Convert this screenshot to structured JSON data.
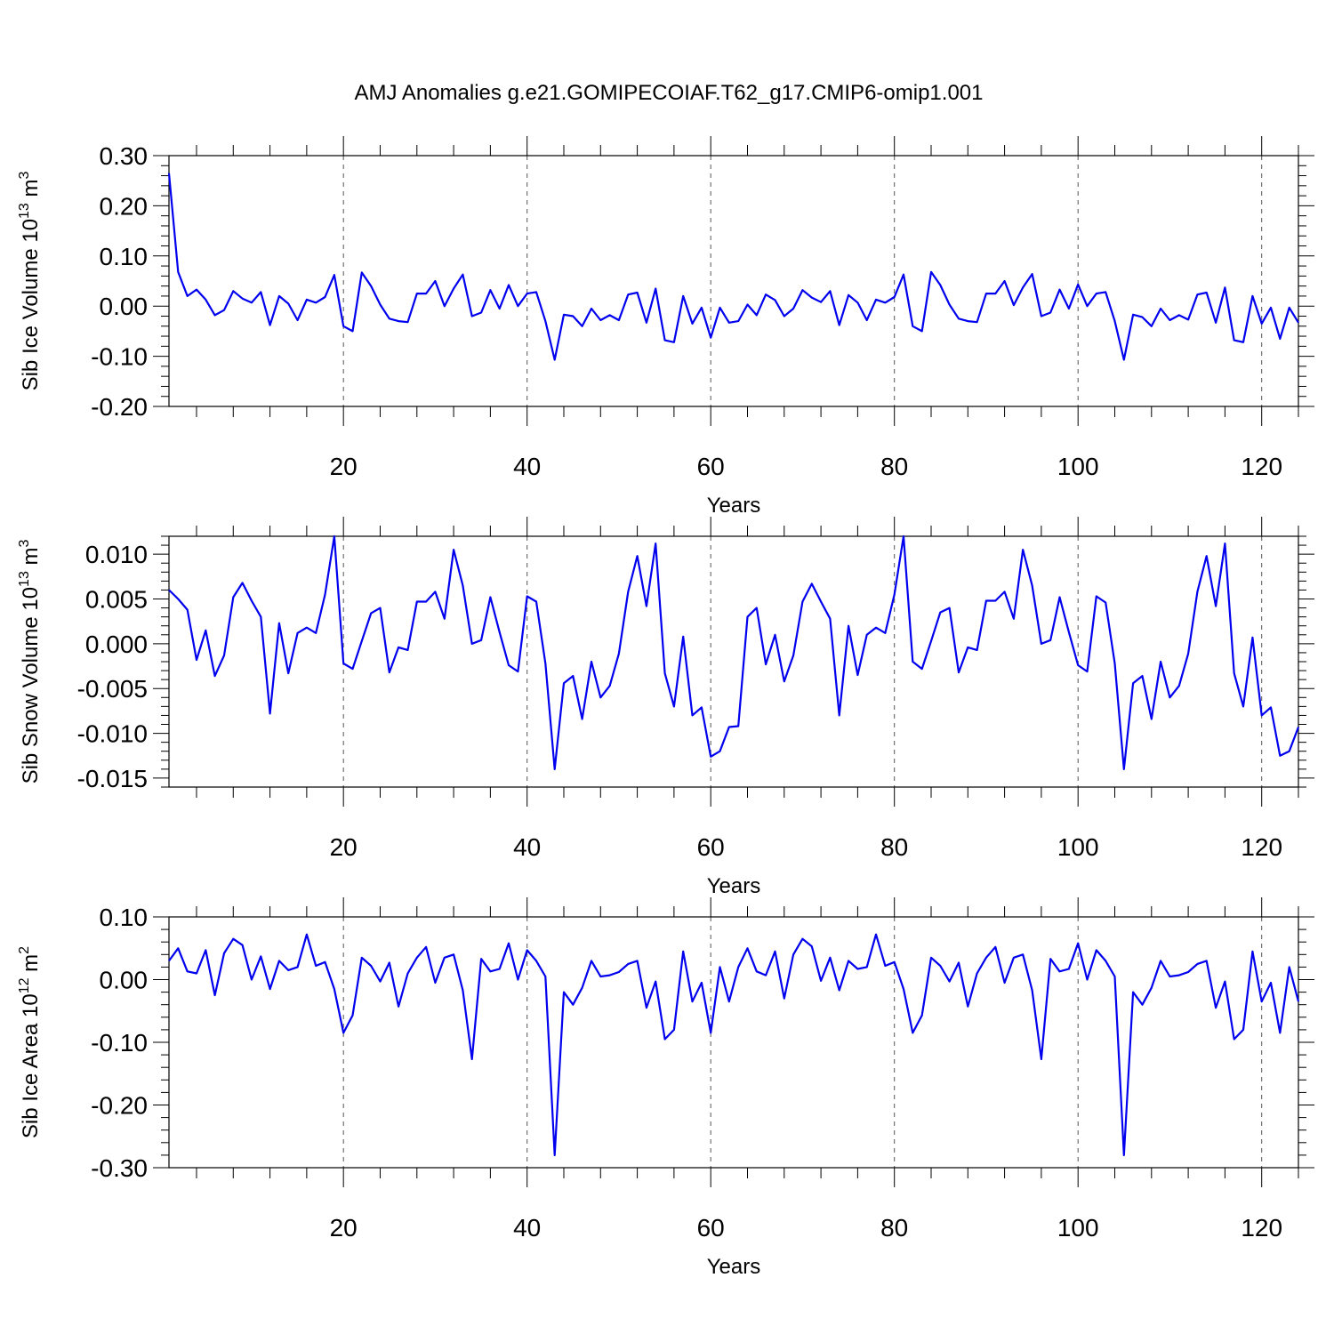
{
  "title": "AMJ Anomalies g.e21.GOMIPECOIAF.T62_g17.CMIP6-omip1.001",
  "chart_data": [
    {
      "type": "line",
      "ylabel_main": "Sib Ice Volume 10",
      "ylabel_exp": "13",
      "ylabel_unit": " m",
      "ylabel_unit_exp": "3",
      "xlabel": "Years",
      "xlim": [
        1,
        124
      ],
      "ylim": [
        -0.2,
        0.3
      ],
      "yticks": [
        -0.2,
        -0.1,
        0.0,
        0.1,
        0.2,
        0.3
      ],
      "yticklabels": [
        "-0.20",
        "-0.10",
        "0.00",
        "0.10",
        "0.20",
        "0.30"
      ],
      "xticks": [
        20,
        40,
        60,
        80,
        100,
        120
      ],
      "xticklabels": [
        "20",
        "40",
        "60",
        "80",
        "100",
        "120"
      ],
      "grid_x": true,
      "color": "#0000ee",
      "series": [
        {
          "values": [
            0.265,
            0.068,
            0.02,
            0.033,
            0.013,
            -0.018,
            -0.008,
            0.03,
            0.015,
            0.007,
            0.028,
            -0.038,
            0.02,
            0.005,
            -0.028,
            0.013,
            0.007,
            0.018,
            0.062,
            -0.04,
            -0.05,
            0.067,
            0.04,
            0.003,
            -0.025,
            -0.03,
            -0.032,
            0.025,
            0.025,
            0.05,
            0.0,
            0.035,
            0.063,
            -0.02,
            -0.013,
            0.032,
            -0.005,
            0.042,
            0.0,
            0.025,
            0.028,
            -0.03,
            -0.107,
            -0.017,
            -0.02,
            -0.04,
            -0.005,
            -0.028,
            -0.018,
            -0.028,
            0.023,
            0.027,
            -0.033,
            0.035,
            -0.068,
            -0.072,
            0.02,
            -0.035,
            -0.003,
            -0.063,
            -0.003,
            -0.033,
            -0.03,
            0.003,
            -0.018,
            0.023,
            0.012,
            -0.02,
            -0.005,
            0.032,
            0.017,
            0.008,
            0.03,
            -0.038,
            0.022,
            0.007,
            -0.028,
            0.013,
            0.007,
            0.018,
            0.063,
            -0.04,
            -0.05,
            0.068,
            0.042,
            0.003,
            -0.025,
            -0.03,
            -0.032,
            0.025,
            0.025,
            0.05,
            0.002,
            0.037,
            0.064,
            -0.02,
            -0.013,
            0.033,
            -0.005,
            0.043,
            0.0,
            0.025,
            0.028,
            -0.03,
            -0.107,
            -0.017,
            -0.022,
            -0.04,
            -0.005,
            -0.028,
            -0.018,
            -0.027,
            0.023,
            0.027,
            -0.033,
            0.037,
            -0.068,
            -0.072,
            0.02,
            -0.035,
            -0.003,
            -0.065,
            -0.003,
            -0.033
          ]
        }
      ]
    },
    {
      "type": "line",
      "ylabel_main": "Sib Snow Volume 10",
      "ylabel_exp": "13",
      "ylabel_unit": " m",
      "ylabel_unit_exp": "3",
      "xlabel": "Years",
      "xlim": [
        1,
        124
      ],
      "ylim": [
        -0.016,
        0.012
      ],
      "yticks": [
        -0.015,
        -0.01,
        -0.005,
        0.0,
        0.005,
        0.01
      ],
      "yticklabels": [
        "-0.015",
        "-0.010",
        "-0.005",
        "0.000",
        "0.005",
        "0.010"
      ],
      "xticks": [
        20,
        40,
        60,
        80,
        100,
        120
      ],
      "xticklabels": [
        "20",
        "40",
        "60",
        "80",
        "100",
        "120"
      ],
      "grid_x": true,
      "color": "#0000ee",
      "series": [
        {
          "values": [
            0.006,
            0.005,
            0.0038,
            -0.0018,
            0.0015,
            -0.0036,
            -0.0013,
            0.0052,
            0.0068,
            0.0048,
            0.003,
            -0.0078,
            0.0023,
            -0.0033,
            0.0012,
            0.0018,
            0.0012,
            0.0055,
            0.012,
            -0.0022,
            -0.0028,
            0.0003,
            0.0034,
            0.004,
            -0.0032,
            -0.0004,
            -0.0007,
            0.0047,
            0.0047,
            0.0058,
            0.0028,
            0.0105,
            0.0065,
            0.0,
            0.0004,
            0.0052,
            0.0013,
            -0.0024,
            -0.0031,
            0.0053,
            0.0047,
            -0.0022,
            -0.014,
            -0.0044,
            -0.0036,
            -0.0084,
            -0.002,
            -0.006,
            -0.0047,
            -0.0011,
            0.0058,
            0.0098,
            0.0042,
            0.0112,
            -0.0033,
            -0.007,
            0.0008,
            -0.008,
            -0.0071,
            -0.0126,
            -0.012,
            -0.0093,
            -0.0092,
            0.003,
            0.004,
            -0.0023,
            0.001,
            -0.0042,
            -0.0013,
            0.0047,
            0.0067,
            0.0047,
            0.0028,
            -0.008,
            0.002,
            -0.0035,
            0.001,
            0.0018,
            0.0012,
            0.0055,
            0.012,
            -0.002,
            -0.0028,
            0.0003,
            0.0035,
            0.004,
            -0.0032,
            -0.0004,
            -0.0007,
            0.0048,
            0.0048,
            0.0058,
            0.0028,
            0.0105,
            0.0065,
            0.0,
            0.0004,
            0.0052,
            0.0013,
            -0.0024,
            -0.0031,
            0.0053,
            0.0046,
            -0.0022,
            -0.014,
            -0.0044,
            -0.0036,
            -0.0084,
            -0.002,
            -0.006,
            -0.0047,
            -0.0011,
            0.0058,
            0.0098,
            0.0042,
            0.0112,
            -0.0033,
            -0.007,
            0.0007,
            -0.008,
            -0.0071,
            -0.0125,
            -0.012,
            -0.0093
          ]
        }
      ]
    },
    {
      "type": "line",
      "ylabel_main": "Sib Ice Area 10",
      "ylabel_exp": "12",
      "ylabel_unit": " m",
      "ylabel_unit_exp": "2",
      "xlabel": "Years",
      "xlim": [
        1,
        124
      ],
      "ylim": [
        -0.3,
        0.1
      ],
      "yticks": [
        -0.3,
        -0.2,
        -0.1,
        0.0,
        0.1
      ],
      "yticklabels": [
        "-0.30",
        "-0.20",
        "-0.10",
        "0.00",
        "0.10"
      ],
      "xticks": [
        20,
        40,
        60,
        80,
        100,
        120
      ],
      "xticklabels": [
        "20",
        "40",
        "60",
        "80",
        "100",
        "120"
      ],
      "grid_x": true,
      "color": "#0000ee",
      "series": [
        {
          "values": [
            0.03,
            0.05,
            0.013,
            0.01,
            0.047,
            -0.025,
            0.042,
            0.065,
            0.055,
            0.0,
            0.037,
            -0.015,
            0.03,
            0.015,
            0.02,
            0.072,
            0.022,
            0.028,
            -0.015,
            -0.085,
            -0.057,
            0.035,
            0.022,
            -0.003,
            0.027,
            -0.043,
            0.01,
            0.035,
            0.052,
            -0.005,
            0.035,
            0.04,
            -0.017,
            -0.127,
            0.033,
            0.013,
            0.017,
            0.058,
            0.0,
            0.047,
            0.03,
            0.005,
            -0.28,
            -0.02,
            -0.04,
            -0.013,
            0.03,
            0.005,
            0.007,
            0.012,
            0.025,
            0.03,
            -0.045,
            -0.003,
            -0.095,
            -0.08,
            0.045,
            -0.035,
            -0.005,
            -0.085,
            0.02,
            -0.035,
            0.02,
            0.05,
            0.013,
            0.007,
            0.045,
            -0.03,
            0.04,
            0.065,
            0.053,
            -0.002,
            0.035,
            -0.017,
            0.03,
            0.017,
            0.02,
            0.072,
            0.022,
            0.028,
            -0.015,
            -0.085,
            -0.057,
            0.035,
            0.022,
            -0.003,
            0.027,
            -0.043,
            0.01,
            0.035,
            0.052,
            -0.005,
            0.035,
            0.04,
            -0.017,
            -0.127,
            0.033,
            0.013,
            0.017,
            0.058,
            0.0,
            0.047,
            0.03,
            0.005,
            -0.28,
            -0.02,
            -0.04,
            -0.013,
            0.03,
            0.005,
            0.007,
            0.012,
            0.025,
            0.03,
            -0.045,
            -0.003,
            -0.095,
            -0.08,
            0.045,
            -0.035,
            -0.005,
            -0.085,
            0.02,
            -0.035
          ]
        }
      ]
    }
  ]
}
